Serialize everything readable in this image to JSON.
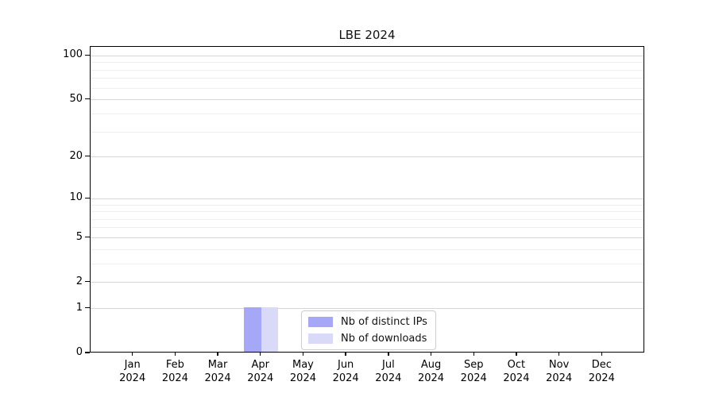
{
  "chart_data": {
    "type": "bar",
    "title": "LBE 2024",
    "year": "2024",
    "categories": [
      "Jan",
      "Feb",
      "Mar",
      "Apr",
      "May",
      "Jun",
      "Jul",
      "Aug",
      "Sep",
      "Oct",
      "Nov",
      "Dec"
    ],
    "series": [
      {
        "name": "Nb of distinct IPs",
        "color": "#a7a7f8",
        "values": [
          0,
          0,
          0,
          1,
          0,
          0,
          0,
          0,
          0,
          0,
          0,
          0
        ]
      },
      {
        "name": "Nb of downloads",
        "color": "#d9d9f8",
        "values": [
          0,
          0,
          0,
          1,
          0,
          0,
          0,
          0,
          0,
          0,
          0,
          0
        ]
      }
    ],
    "xlabel": "",
    "ylabel": "",
    "y_scale": "log1p",
    "y_max": 115,
    "y_major_ticks": [
      0,
      1,
      2,
      5,
      10,
      20,
      50,
      100
    ],
    "y_minor_ticks": [
      3,
      4,
      6,
      7,
      8,
      9,
      30,
      40,
      60,
      70,
      80,
      90
    ],
    "bar_width_frac": 0.4,
    "grid": true,
    "legend_position": "bottom-center"
  },
  "colors": {
    "axis": "#000000",
    "major_grid": "#d6d6d6",
    "minor_grid": "#efefef",
    "legend_border": "#cccccc",
    "background": "#ffffff"
  }
}
